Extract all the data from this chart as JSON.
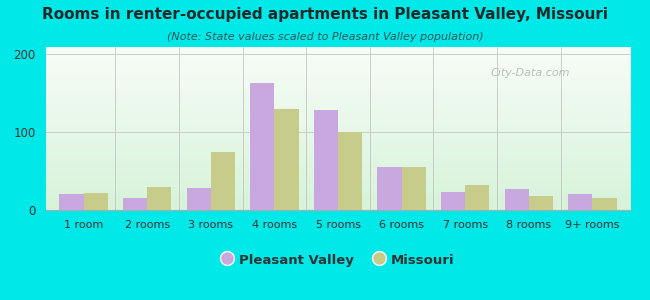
{
  "title": "Rooms in renter-occupied apartments in Pleasant Valley, Missouri",
  "subtitle": "(Note: State values scaled to Pleasant Valley population)",
  "categories": [
    "1 room",
    "2 rooms",
    "3 rooms",
    "4 rooms",
    "5 rooms",
    "6 rooms",
    "7 rooms",
    "8 rooms",
    "9+ rooms"
  ],
  "pleasant_valley": [
    20,
    15,
    28,
    163,
    128,
    55,
    23,
    27,
    20
  ],
  "missouri": [
    22,
    30,
    75,
    130,
    100,
    55,
    32,
    18,
    15
  ],
  "pv_color": "#c9a8e0",
  "mo_color": "#c8cc8a",
  "background_outer": "#00e8e8",
  "ylim": [
    0,
    210
  ],
  "yticks": [
    0,
    100,
    200
  ],
  "bar_width": 0.38,
  "watermark": "City-Data.com",
  "legend_pv": "Pleasant Valley",
  "legend_mo": "Missouri",
  "title_color": "#1a2a2a",
  "subtitle_color": "#2a5555"
}
